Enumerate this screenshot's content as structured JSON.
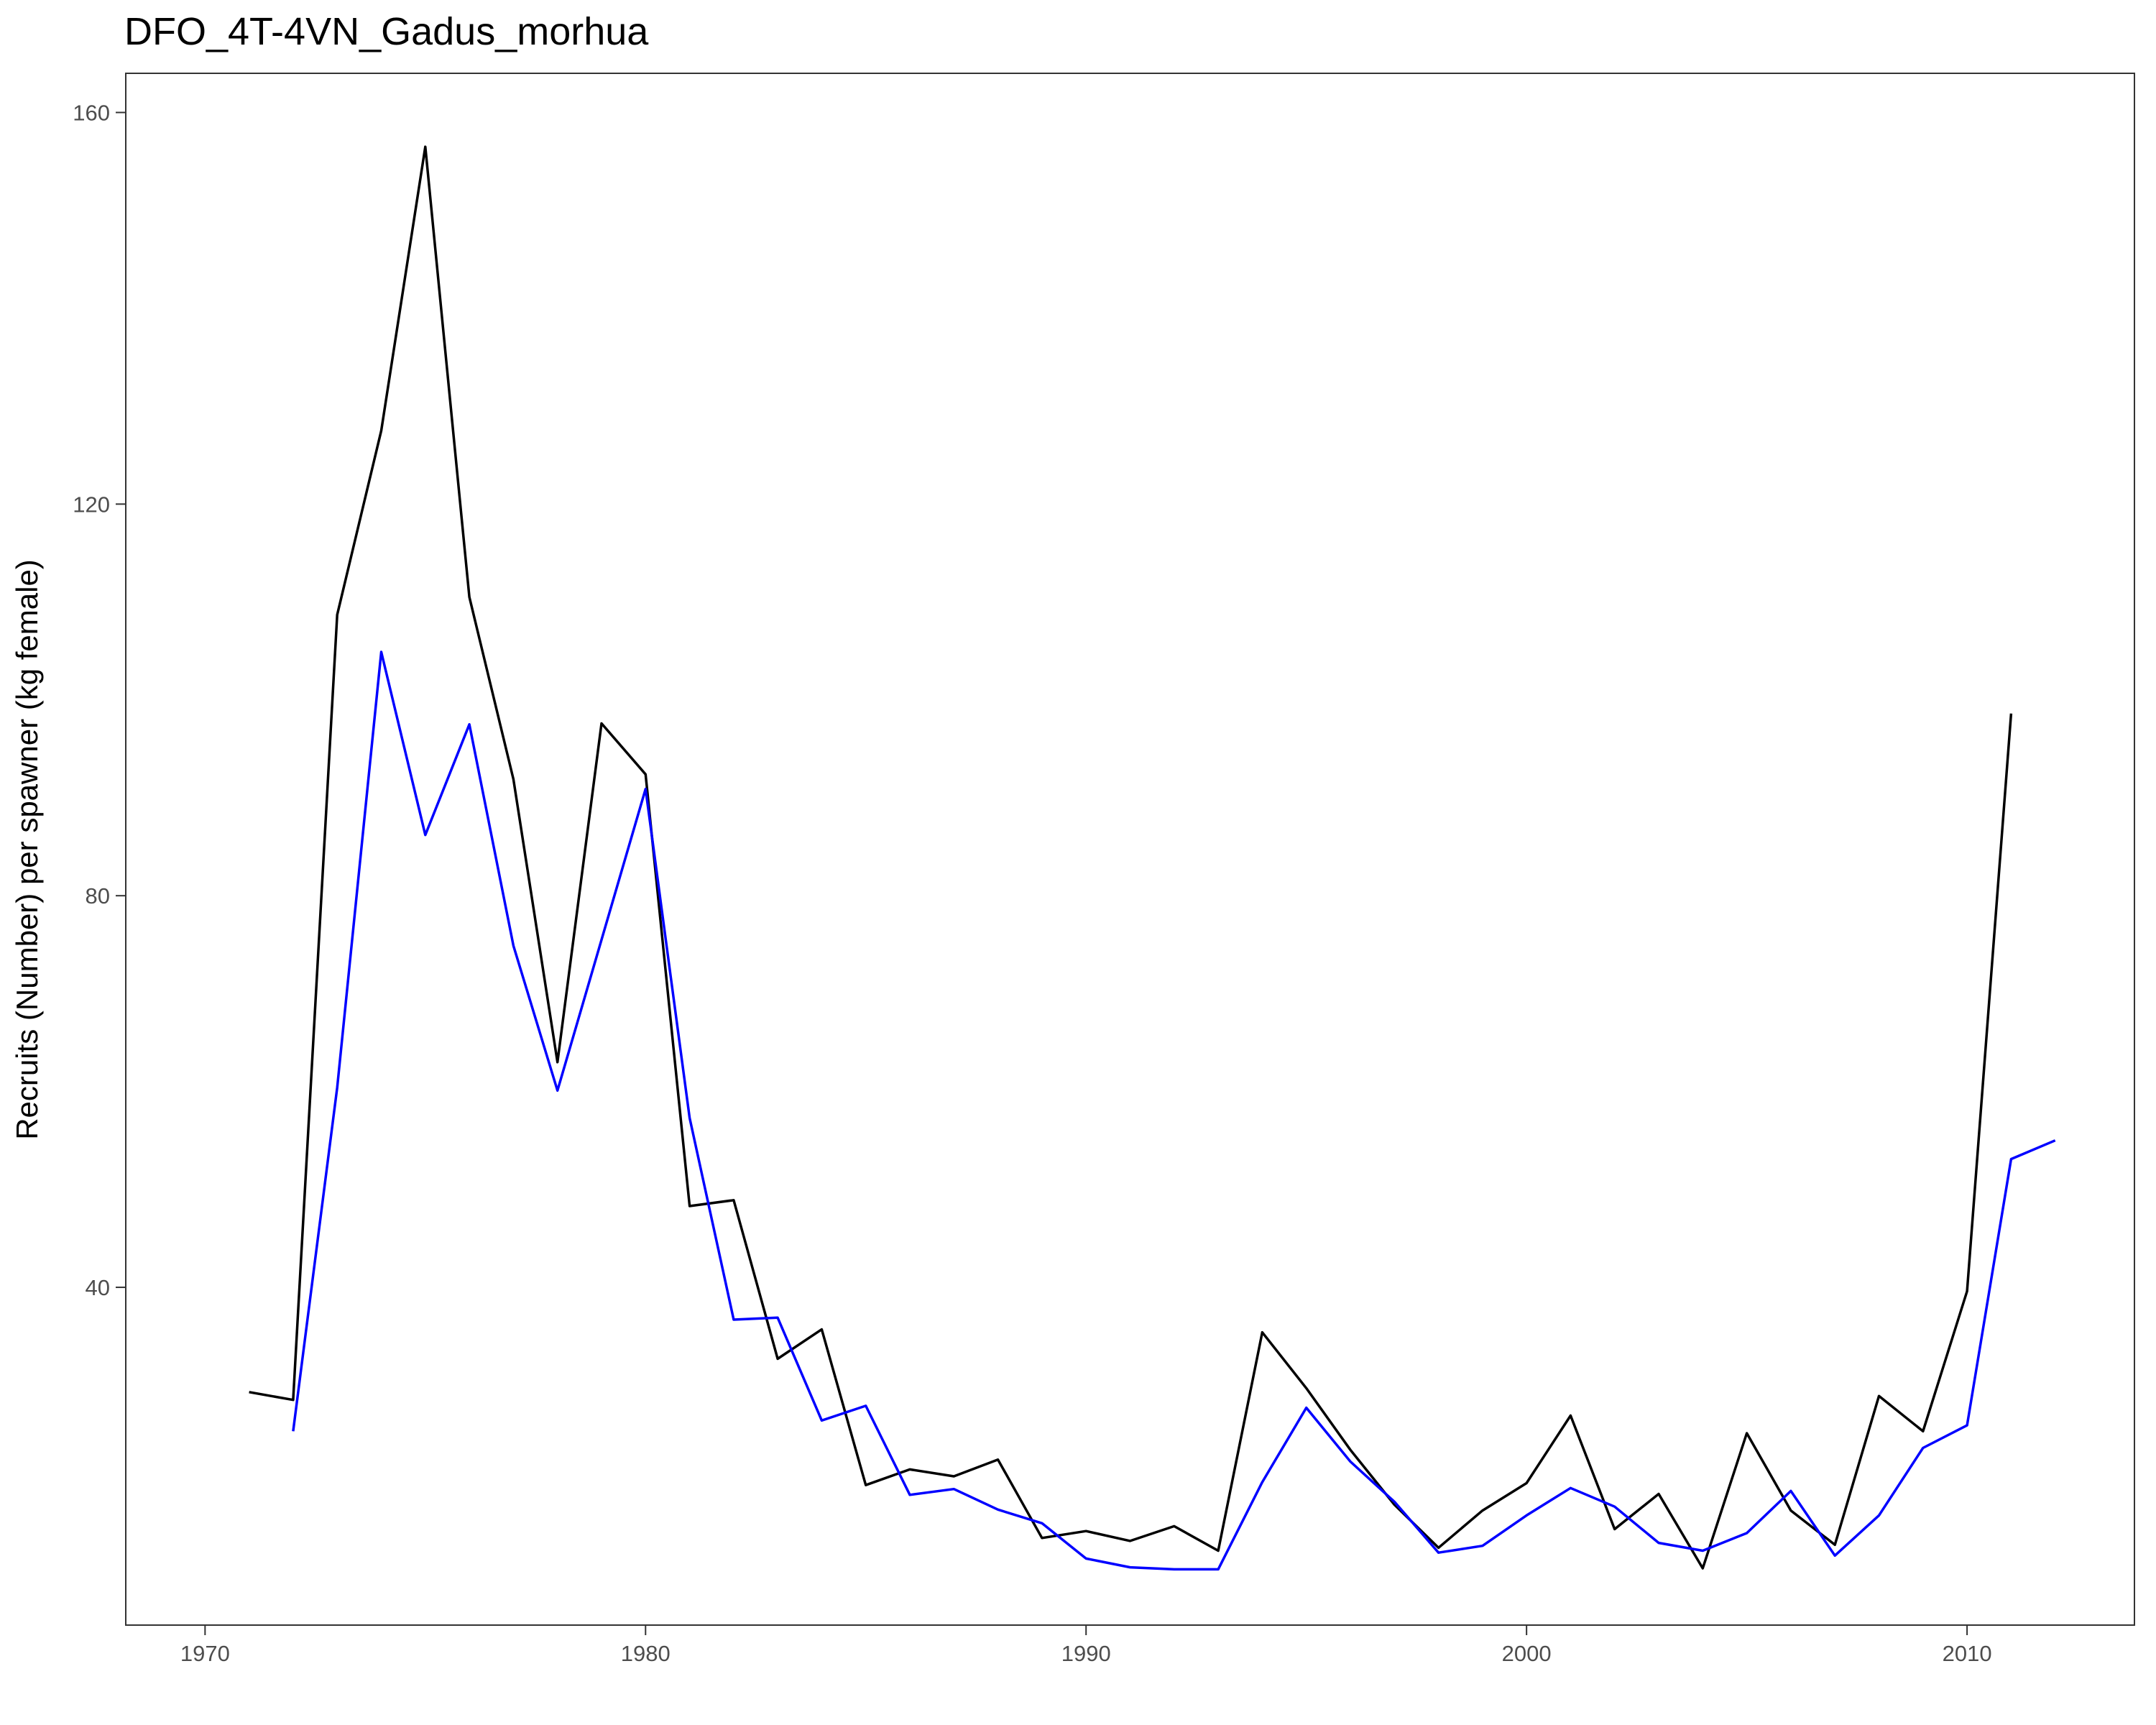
{
  "chart_data": {
    "type": "line",
    "title": "DFO_4T-4VN_Gadus_morhua",
    "xlabel": "",
    "ylabel": "Recruits (Number) per spawner (kg female)",
    "xlim": [
      1968.2,
      2013.8
    ],
    "ylim": [
      5.5,
      164
    ],
    "x_ticks": [
      "1970",
      "1980",
      "1990",
      "2000",
      "2010"
    ],
    "y_ticks": [
      "40",
      "80",
      "120",
      "160"
    ],
    "grid": false,
    "legend": "none",
    "series": [
      {
        "color": "#000000",
        "points": [
          [
            1971,
            29.3
          ],
          [
            1972,
            28.5
          ],
          [
            1973,
            108.7
          ],
          [
            1974,
            127.5
          ],
          [
            1975,
            156.5
          ],
          [
            1976,
            110.5
          ],
          [
            1977,
            91.9
          ],
          [
            1978,
            63.0
          ],
          [
            1979,
            97.6
          ],
          [
            1980,
            92.4
          ],
          [
            1981,
            48.3
          ],
          [
            1982,
            48.9
          ],
          [
            1983,
            32.7
          ],
          [
            1984,
            35.7
          ],
          [
            1985,
            19.8
          ],
          [
            1986,
            21.4
          ],
          [
            1987,
            20.7
          ],
          [
            1988,
            22.4
          ],
          [
            1989,
            14.4
          ],
          [
            1990,
            15.1
          ],
          [
            1991,
            14.1
          ],
          [
            1992,
            15.6
          ],
          [
            1993,
            13.1
          ],
          [
            1994,
            35.4
          ],
          [
            1995,
            29.7
          ],
          [
            1996,
            23.4
          ],
          [
            1997,
            17.8
          ],
          [
            1998,
            13.4
          ],
          [
            1999,
            17.2
          ],
          [
            2000,
            20.0
          ],
          [
            2001,
            26.9
          ],
          [
            2002,
            15.3
          ],
          [
            2003,
            18.9
          ],
          [
            2004,
            11.3
          ],
          [
            2005,
            25.1
          ],
          [
            2006,
            17.2
          ],
          [
            2007,
            13.7
          ],
          [
            2008,
            28.9
          ],
          [
            2009,
            25.3
          ],
          [
            2010,
            39.6
          ],
          [
            2011,
            98.6
          ]
        ]
      },
      {
        "color": "#0000ff",
        "points": [
          [
            1972,
            25.3
          ],
          [
            1973,
            60.4
          ],
          [
            1974,
            104.9
          ],
          [
            1975,
            86.2
          ],
          [
            1976,
            97.5
          ],
          [
            1977,
            74.9
          ],
          [
            1978,
            60.1
          ],
          [
            1979,
            75.5
          ],
          [
            1980,
            90.9
          ],
          [
            1981,
            57.3
          ],
          [
            1982,
            36.7
          ],
          [
            1983,
            36.9
          ],
          [
            1984,
            26.4
          ],
          [
            1985,
            27.9
          ],
          [
            1986,
            18.8
          ],
          [
            1987,
            19.4
          ],
          [
            1988,
            17.3
          ],
          [
            1989,
            15.9
          ],
          [
            1990,
            12.3
          ],
          [
            1991,
            11.4
          ],
          [
            1992,
            11.2
          ],
          [
            1993,
            11.2
          ],
          [
            1994,
            20.1
          ],
          [
            1995,
            27.7
          ],
          [
            1996,
            22.2
          ],
          [
            1997,
            18.1
          ],
          [
            1998,
            12.9
          ],
          [
            1999,
            13.6
          ],
          [
            2000,
            16.7
          ],
          [
            2001,
            19.5
          ],
          [
            2002,
            17.6
          ],
          [
            2003,
            13.9
          ],
          [
            2004,
            13.1
          ],
          [
            2005,
            14.9
          ],
          [
            2006,
            19.2
          ],
          [
            2007,
            12.6
          ],
          [
            2008,
            16.7
          ],
          [
            2009,
            23.6
          ],
          [
            2010,
            25.9
          ],
          [
            2011,
            53.1
          ],
          [
            2012,
            55.0
          ]
        ]
      }
    ]
  }
}
